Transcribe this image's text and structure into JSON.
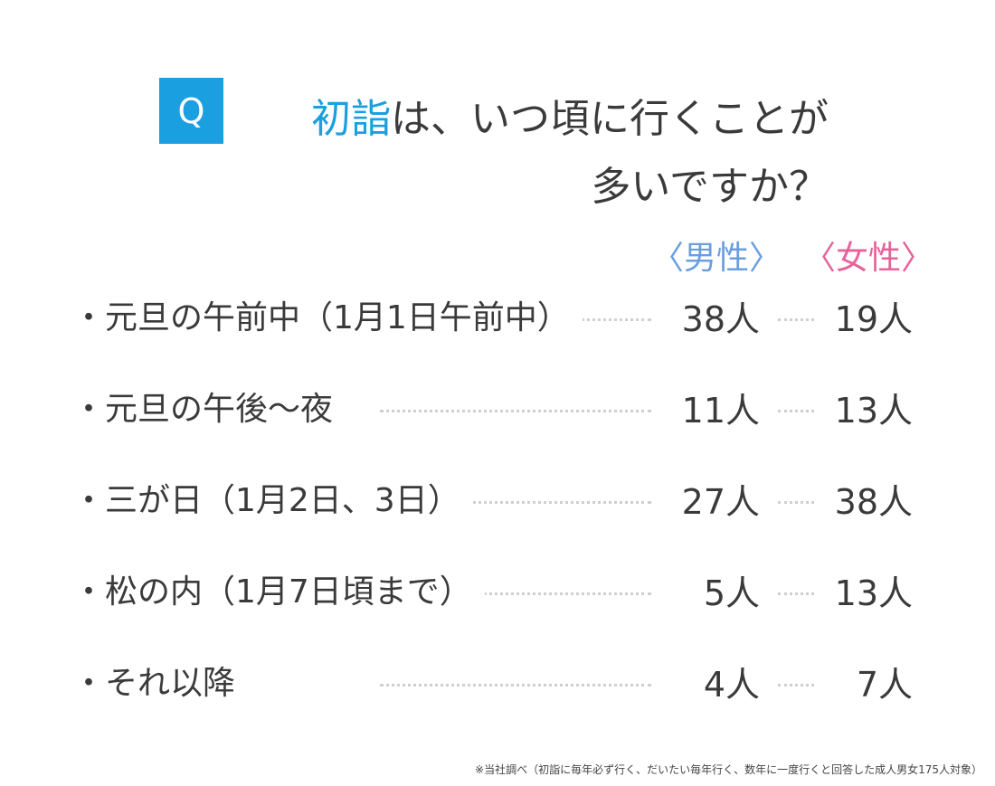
{
  "question": {
    "badge": "Q",
    "line1_accent": "初詣",
    "line1_rest": "は、いつ頃に行くことが",
    "line2": "多いですか？"
  },
  "headers": {
    "male": "〈男性〉",
    "female": "〈女性〉"
  },
  "rows": [
    {
      "label": "・元旦の午前中（1月1日午前中）",
      "male": "38人",
      "female": "19人"
    },
    {
      "label": "・元旦の午後〜夜",
      "male": "11人",
      "female": "13人"
    },
    {
      "label": "・三が日（1月2日、3日）",
      "male": "27人",
      "female": "38人"
    },
    {
      "label": "・松の内（1月7日頃まで）",
      "male": "5人",
      "female": "13人"
    },
    {
      "label": "・それ以降",
      "male": "4人",
      "female": "7人"
    }
  ],
  "footnote": "※当社調べ（初詣に毎年必ず行く、だいたい毎年行く、数年に一度行くと回答した成人男女175人対象）",
  "colors": {
    "accent": "#1a9fe0",
    "male": "#6a9ee0",
    "female": "#e8629a",
    "text": "#3a3a3a"
  }
}
